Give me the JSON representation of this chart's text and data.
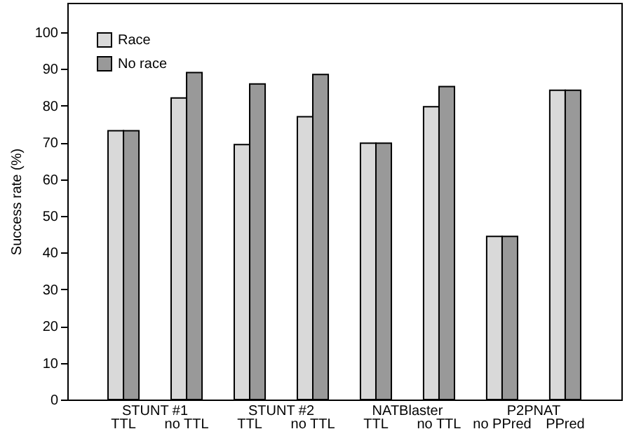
{
  "chart_data": {
    "type": "bar",
    "categories": [
      "TTL",
      "no TTL",
      "TTL",
      "no TTL",
      "TTL",
      "no TTL",
      "no PPred",
      "PPred"
    ],
    "series": [
      {
        "name": "Race",
        "color": "#d9d9d9",
        "values": [
          73.2,
          82.1,
          69.4,
          77.0,
          69.8,
          79.7,
          44.4,
          84.2
        ]
      },
      {
        "name": "No race",
        "color": "#999999",
        "values": [
          73.2,
          89.0,
          85.9,
          88.5,
          69.8,
          85.2,
          44.4,
          84.2
        ]
      }
    ],
    "annotations": [
      "STUNT #1",
      "STUNT #2",
      "NATBlaster",
      "P2PNAT"
    ],
    "ylabel": "Success rate (%)",
    "ylim": [
      0,
      108
    ],
    "yticks": [
      0,
      10,
      20,
      30,
      40,
      50,
      60,
      70,
      80,
      90,
      100
    ],
    "legend": "top left",
    "grid": false
  }
}
